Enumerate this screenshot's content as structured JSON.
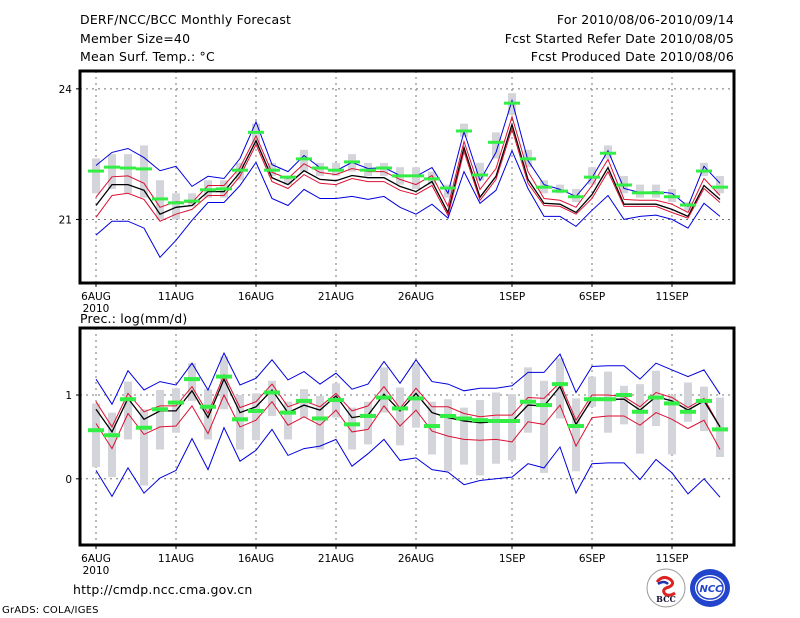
{
  "header": {
    "title": "DERF/NCC/BCC Monthly Forecast",
    "member_size": "Member Size=40",
    "variable_temp": "Mean Surf. Temp.: °C",
    "for_range": "For 2010/08/06-2010/09/14",
    "fcst_started": "Fcst Started Refer Date 2010/08/05",
    "fcst_produced": "Fcst Produced Date 2010/08/06"
  },
  "footer": {
    "url": "http://cmdp.ncc.cma.gov.cn",
    "credit": "GrADS: COLA/IGES",
    "logo_left": "BCC",
    "logo_right": "NCC"
  },
  "colors": {
    "envelope": "#0000dd",
    "spread": "#dd1133",
    "mean": "#000000",
    "observed": "#33ee44",
    "box": "#d3d5da"
  },
  "chart_data": [
    {
      "type": "line",
      "title": "Mean Surf. Temp.: °C",
      "xlabel": "",
      "ylabel": "",
      "ylim": [
        19.54,
        24.41
      ],
      "yticks": [
        21,
        24
      ],
      "ytick_labels": [
        "21",
        "24"
      ],
      "x_start": "2010-08-06",
      "n_days": 40,
      "xticks_day_index": [
        0,
        5,
        10,
        15,
        20,
        26,
        31,
        36
      ],
      "xtick_labels": [
        "6AUG",
        "11AUG",
        "16AUG",
        "21AUG",
        "26AUG",
        "1SEP",
        "6SEP",
        "11SEP"
      ],
      "xtick_sublabel": "2010",
      "grid": true,
      "series": [
        {
          "name": "ensemble-max",
          "color": "#0000dd",
          "values": [
            22.24,
            22.54,
            22.63,
            22.42,
            22.12,
            22.22,
            21.76,
            21.99,
            21.94,
            22.4,
            23.24,
            22.26,
            22.1,
            22.47,
            22.19,
            22.12,
            22.31,
            22.17,
            22.19,
            22.01,
            21.99,
            22.19,
            21.6,
            23.02,
            21.89,
            22.54,
            23.73,
            22.35,
            21.8,
            21.69,
            21.53,
            21.96,
            22.58,
            21.71,
            21.62,
            21.64,
            21.6,
            21.3,
            22.22,
            21.83
          ]
        },
        {
          "name": "spread-upper",
          "color": "#dd1133",
          "values": [
            21.51,
            21.98,
            22.0,
            21.83,
            21.28,
            21.41,
            21.39,
            21.78,
            21.78,
            22.19,
            22.92,
            22.08,
            21.94,
            22.28,
            22.08,
            22.03,
            22.17,
            22.1,
            22.1,
            21.92,
            21.8,
            22.01,
            21.3,
            22.79,
            21.69,
            22.17,
            23.36,
            22.1,
            21.48,
            21.44,
            21.28,
            21.78,
            22.38,
            21.46,
            21.44,
            21.44,
            21.35,
            21.16,
            21.94,
            21.55
          ]
        },
        {
          "name": "ensemble-mean",
          "color": "#000000",
          "values": [
            21.32,
            21.8,
            21.8,
            21.67,
            21.12,
            21.28,
            21.32,
            21.64,
            21.64,
            22.08,
            22.81,
            21.96,
            21.8,
            22.12,
            21.92,
            21.89,
            22.01,
            21.96,
            21.96,
            21.76,
            21.64,
            21.87,
            21.16,
            22.65,
            21.51,
            21.99,
            23.18,
            21.92,
            21.37,
            21.35,
            21.16,
            21.57,
            22.19,
            21.35,
            21.35,
            21.35,
            21.23,
            21.07,
            21.78,
            21.46
          ]
        },
        {
          "name": "spread-lower",
          "color": "#dd1133",
          "values": [
            21.05,
            21.55,
            21.6,
            21.46,
            20.96,
            21.12,
            21.23,
            21.55,
            21.55,
            21.99,
            22.72,
            21.87,
            21.71,
            22.03,
            21.83,
            21.8,
            21.94,
            21.87,
            21.87,
            21.67,
            21.57,
            21.78,
            21.09,
            22.56,
            21.44,
            21.92,
            23.08,
            21.83,
            21.32,
            21.3,
            21.12,
            21.48,
            22.1,
            21.3,
            21.3,
            21.3,
            21.16,
            21.03,
            21.71,
            21.39
          ]
        },
        {
          "name": "ensemble-min",
          "color": "#0000dd",
          "values": [
            20.64,
            20.96,
            20.96,
            20.8,
            20.13,
            20.52,
            20.98,
            21.39,
            21.39,
            21.78,
            22.31,
            21.48,
            21.32,
            21.69,
            21.48,
            21.48,
            21.53,
            21.46,
            21.53,
            21.28,
            21.12,
            21.35,
            21.03,
            22.1,
            21.37,
            21.67,
            22.58,
            21.71,
            21.07,
            21.07,
            20.84,
            21.21,
            21.55,
            21.0,
            21.07,
            21.1,
            21.0,
            20.8,
            21.37,
            21.07
          ]
        }
      ],
      "observed": [
        22.1,
        22.19,
        22.17,
        22.15,
        21.46,
        21.37,
        21.41,
        21.67,
        21.69,
        22.12,
        22.99,
        22.12,
        21.96,
        22.38,
        22.17,
        22.12,
        22.31,
        22.12,
        22.17,
        21.99,
        21.99,
        21.92,
        21.71,
        23.02,
        22.01,
        22.76,
        23.66,
        22.38,
        21.73,
        21.64,
        21.51,
        21.96,
        22.51,
        21.78,
        21.6,
        21.6,
        21.51,
        21.32,
        22.1,
        21.73
      ],
      "boxes": [
        [
          21.6,
          22.4
        ],
        [
          21.7,
          22.5
        ],
        [
          21.6,
          22.5
        ],
        [
          21.5,
          22.7
        ],
        [
          21.0,
          21.9
        ],
        [
          21.0,
          21.6
        ],
        [
          21.3,
          21.6
        ],
        [
          21.5,
          21.9
        ],
        [
          21.5,
          21.9
        ],
        [
          21.9,
          22.3
        ],
        [
          22.7,
          23.2
        ],
        [
          22.0,
          22.3
        ],
        [
          21.8,
          22.0
        ],
        [
          22.1,
          22.6
        ],
        [
          22.0,
          22.3
        ],
        [
          22.0,
          22.3
        ],
        [
          22.1,
          22.5
        ],
        [
          22.0,
          22.3
        ],
        [
          22.0,
          22.3
        ],
        [
          21.8,
          22.2
        ],
        [
          21.7,
          22.2
        ],
        [
          21.8,
          22.1
        ],
        [
          21.5,
          21.8
        ],
        [
          22.9,
          23.2
        ],
        [
          21.9,
          22.3
        ],
        [
          22.4,
          23.0
        ],
        [
          23.4,
          23.9
        ],
        [
          22.2,
          22.6
        ],
        [
          21.6,
          21.9
        ],
        [
          21.6,
          21.8
        ],
        [
          21.4,
          21.7
        ],
        [
          21.8,
          22.2
        ],
        [
          22.4,
          22.7
        ],
        [
          21.6,
          22.0
        ],
        [
          21.5,
          21.8
        ],
        [
          21.5,
          21.8
        ],
        [
          21.4,
          21.7
        ],
        [
          21.2,
          21.4
        ],
        [
          22.0,
          22.3
        ],
        [
          21.6,
          22.0
        ]
      ]
    },
    {
      "type": "line",
      "title": "Prec.: log(mm/d)",
      "xlabel": "",
      "ylabel": "",
      "ylim": [
        -0.79,
        1.8
      ],
      "yticks": [
        0,
        1
      ],
      "ytick_labels": [
        "0",
        "1"
      ],
      "x_start": "2010-08-06",
      "n_days": 40,
      "xticks_day_index": [
        0,
        5,
        10,
        15,
        20,
        26,
        31,
        36
      ],
      "xtick_labels": [
        "6AUG",
        "11AUG",
        "16AUG",
        "21AUG",
        "26AUG",
        "1SEP",
        "6SEP",
        "11SEP"
      ],
      "xtick_sublabel": "2010",
      "grid": true,
      "series": [
        {
          "name": "ensemble-max",
          "color": "#0000dd",
          "values": [
            1.19,
            0.89,
            1.29,
            1.06,
            1.16,
            1.12,
            1.38,
            1.06,
            1.5,
            1.12,
            1.2,
            1.42,
            1.18,
            1.28,
            1.13,
            1.26,
            1.07,
            1.13,
            1.4,
            1.14,
            1.42,
            1.16,
            1.13,
            1.05,
            1.08,
            1.08,
            1.11,
            1.27,
            1.27,
            1.49,
            1.03,
            1.34,
            1.35,
            1.35,
            1.19,
            1.38,
            1.3,
            1.22,
            1.3,
            1.01
          ]
        },
        {
          "name": "spread-upper",
          "color": "#dd1133",
          "values": [
            0.92,
            0.62,
            1.02,
            0.8,
            0.87,
            0.87,
            1.1,
            0.78,
            1.24,
            0.85,
            0.92,
            1.13,
            0.86,
            0.93,
            0.86,
            1.02,
            0.81,
            0.87,
            1.1,
            0.84,
            1.08,
            0.86,
            0.86,
            0.78,
            0.74,
            0.76,
            0.76,
            0.97,
            0.96,
            1.15,
            0.7,
            1.0,
            1.0,
            0.98,
            0.86,
            1.03,
            0.97,
            0.85,
            0.96,
            0.62
          ]
        },
        {
          "name": "ensemble-mean",
          "color": "#000000",
          "values": [
            0.83,
            0.56,
            0.96,
            0.71,
            0.81,
            0.81,
            1.05,
            0.73,
            1.19,
            0.79,
            0.86,
            1.06,
            0.79,
            0.88,
            0.82,
            0.99,
            0.73,
            0.76,
            1.01,
            0.81,
            1.02,
            0.79,
            0.73,
            0.69,
            0.67,
            0.68,
            0.68,
            0.88,
            0.87,
            1.1,
            0.65,
            0.95,
            0.95,
            0.95,
            0.82,
            0.98,
            0.93,
            0.82,
            0.93,
            0.62
          ]
        },
        {
          "name": "spread-lower",
          "color": "#dd1133",
          "values": [
            0.66,
            0.36,
            0.78,
            0.53,
            0.62,
            0.63,
            0.87,
            0.54,
            1.0,
            0.62,
            0.7,
            0.92,
            0.64,
            0.74,
            0.64,
            0.82,
            0.56,
            0.59,
            0.87,
            0.63,
            0.82,
            0.57,
            0.51,
            0.47,
            0.46,
            0.47,
            0.44,
            0.68,
            0.65,
            0.88,
            0.39,
            0.73,
            0.75,
            0.75,
            0.64,
            0.79,
            0.71,
            0.6,
            0.7,
            0.35
          ]
        },
        {
          "name": "ensemble-min",
          "color": "#0000dd",
          "values": [
            0.1,
            -0.21,
            0.13,
            -0.17,
            0.01,
            0.1,
            0.48,
            0.11,
            0.61,
            0.21,
            0.34,
            0.59,
            0.28,
            0.36,
            0.39,
            0.47,
            0.15,
            0.3,
            0.47,
            0.22,
            0.25,
            0.11,
            0.08,
            -0.07,
            -0.02,
            0.0,
            0.02,
            0.18,
            0.13,
            0.38,
            -0.17,
            0.18,
            0.19,
            0.19,
            -0.01,
            0.23,
            0.07,
            -0.18,
            0.0,
            -0.22
          ]
        }
      ],
      "observed": [
        0.58,
        0.52,
        0.95,
        0.61,
        0.83,
        0.91,
        1.19,
        0.86,
        1.22,
        0.71,
        0.81,
        1.03,
        0.79,
        0.93,
        0.72,
        0.94,
        0.65,
        0.75,
        0.97,
        0.84,
        0.96,
        0.63,
        0.75,
        0.72,
        0.7,
        0.69,
        0.69,
        0.92,
        0.88,
        1.13,
        0.63,
        0.95,
        0.95,
        1.0,
        0.8,
        0.97,
        0.9,
        0.8,
        0.93,
        0.59
      ],
      "boxes": [
        [
          0.14,
          0.9
        ],
        [
          0.02,
          0.79
        ],
        [
          0.47,
          1.16
        ],
        [
          -0.08,
          0.83
        ],
        [
          0.35,
          1.06
        ],
        [
          0.55,
          1.08
        ],
        [
          0.93,
          1.38
        ],
        [
          0.47,
          1.07
        ],
        [
          0.83,
          1.46
        ],
        [
          0.35,
          1.0
        ],
        [
          0.46,
          1.02
        ],
        [
          0.75,
          1.17
        ],
        [
          0.47,
          0.92
        ],
        [
          0.73,
          1.07
        ],
        [
          0.35,
          0.99
        ],
        [
          0.73,
          1.14
        ],
        [
          0.35,
          0.85
        ],
        [
          0.41,
          0.92
        ],
        [
          0.79,
          1.33
        ],
        [
          0.4,
          1.09
        ],
        [
          0.61,
          1.38
        ],
        [
          0.29,
          0.92
        ],
        [
          0.09,
          0.95
        ],
        [
          0.17,
          0.85
        ],
        [
          0.04,
          0.94
        ],
        [
          0.18,
          1.03
        ],
        [
          0.22,
          1.01
        ],
        [
          0.55,
          1.33
        ],
        [
          0.07,
          1.17
        ],
        [
          0.72,
          1.44
        ],
        [
          0.09,
          0.96
        ],
        [
          0.86,
          1.22
        ],
        [
          0.55,
          1.28
        ],
        [
          0.65,
          1.11
        ],
        [
          0.3,
          1.13
        ],
        [
          0.63,
          1.29
        ],
        [
          0.29,
          1.0
        ],
        [
          0.68,
          1.15
        ],
        [
          0.57,
          1.1
        ],
        [
          0.26,
          0.97
        ]
      ]
    }
  ]
}
